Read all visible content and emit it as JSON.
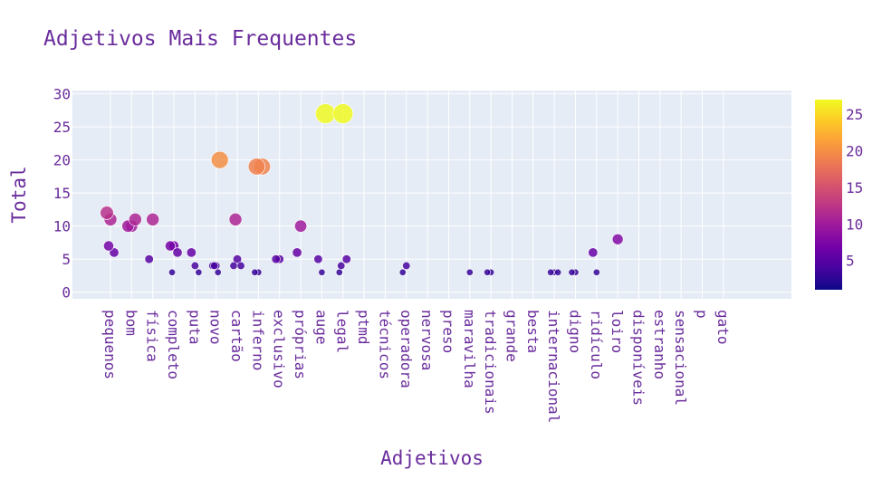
{
  "chart_data": {
    "type": "scatter",
    "title": "Adjetivos Mais Frequentes",
    "xlabel": "Adjetivos",
    "ylabel": "Total",
    "ylim": [
      -1,
      30.5
    ],
    "yticks": [
      0,
      5,
      10,
      15,
      20,
      25,
      30
    ],
    "categories": [
      "pequenos",
      "bom",
      "física",
      "completo",
      "puta",
      "novo",
      "cartão",
      "inferno",
      "exclusivo",
      "próprias",
      "auge",
      "legal",
      "ptmd",
      "técnicos",
      "operadora",
      "nervosa",
      "preso",
      "maravilha",
      "tradicionais",
      "grande",
      "besta",
      "internacional",
      "digno",
      "ridículo",
      "loiro",
      "disponíveis",
      "estranho",
      "sensacional",
      "p",
      "gato"
    ],
    "points": [
      {
        "category": "pequenos",
        "total": 11
      },
      {
        "category": "pequenos",
        "total": 12
      },
      {
        "category": "pequenos",
        "total": 6
      },
      {
        "category": "pequenos",
        "total": 7
      },
      {
        "category": "bom",
        "total": 10
      },
      {
        "category": "bom",
        "total": 10
      },
      {
        "category": "bom",
        "total": 11
      },
      {
        "category": "física",
        "total": 11
      },
      {
        "category": "física",
        "total": 5
      },
      {
        "category": "completo",
        "total": 7
      },
      {
        "category": "completo",
        "total": 7
      },
      {
        "category": "completo",
        "total": 6
      },
      {
        "category": "completo",
        "total": 3
      },
      {
        "category": "puta",
        "total": 4
      },
      {
        "category": "puta",
        "total": 6
      },
      {
        "category": "puta",
        "total": 3
      },
      {
        "category": "novo",
        "total": 4
      },
      {
        "category": "novo",
        "total": 4
      },
      {
        "category": "novo",
        "total": 20
      },
      {
        "category": "novo",
        "total": 4
      },
      {
        "category": "novo",
        "total": 3
      },
      {
        "category": "cartão",
        "total": 5
      },
      {
        "category": "cartão",
        "total": 4
      },
      {
        "category": "cartão",
        "total": 4
      },
      {
        "category": "cartão",
        "total": 11
      },
      {
        "category": "inferno",
        "total": 3
      },
      {
        "category": "inferno",
        "total": 3
      },
      {
        "category": "inferno",
        "total": 19
      },
      {
        "category": "inferno",
        "total": 19
      },
      {
        "category": "exclusivo",
        "total": 5
      },
      {
        "category": "exclusivo",
        "total": 5
      },
      {
        "category": "próprias",
        "total": 10
      },
      {
        "category": "próprias",
        "total": 6
      },
      {
        "category": "auge",
        "total": 3
      },
      {
        "category": "auge",
        "total": 5
      },
      {
        "category": "auge",
        "total": 27
      },
      {
        "category": "legal",
        "total": 27
      },
      {
        "category": "legal",
        "total": 3
      },
      {
        "category": "legal",
        "total": 5
      },
      {
        "category": "legal",
        "total": 4
      },
      {
        "category": "operadora",
        "total": 4
      },
      {
        "category": "operadora",
        "total": 3
      },
      {
        "category": "maravilha",
        "total": 3
      },
      {
        "category": "tradicionais",
        "total": 3
      },
      {
        "category": "tradicionais",
        "total": 3
      },
      {
        "category": "internacional",
        "total": 3
      },
      {
        "category": "internacional",
        "total": 3
      },
      {
        "category": "internacional",
        "total": 3
      },
      {
        "category": "digno",
        "total": 3
      },
      {
        "category": "digno",
        "total": 3
      },
      {
        "category": "ridículo",
        "total": 3
      },
      {
        "category": "ridículo",
        "total": 6
      },
      {
        "category": "loiro",
        "total": 8
      }
    ],
    "colorbar": {
      "min": 1,
      "max": 27,
      "ticks": [
        5,
        10,
        15,
        20,
        25
      ],
      "colorscale": "plasma"
    },
    "grid": true,
    "legend": "colorbar-right"
  }
}
